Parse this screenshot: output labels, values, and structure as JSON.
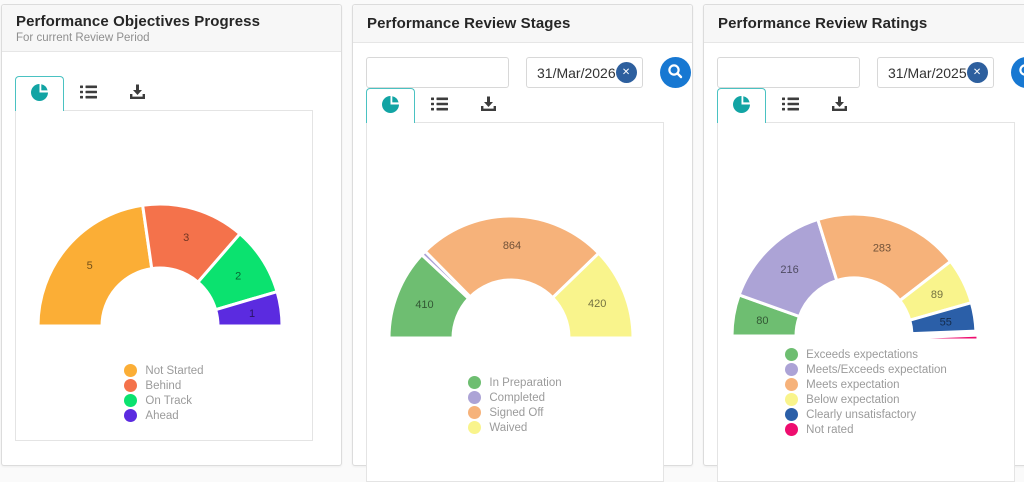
{
  "accent": {
    "tab_border": "#4ac2c2",
    "pie_icon": "#12a4a4",
    "search_button": "#1778d2",
    "clear_button": "#2d5f9e"
  },
  "cards": [
    {
      "title": "Performance Objectives Progress",
      "subtitle": "For current Review Period",
      "chart_data": {
        "type": "pie",
        "shape": "half-donut",
        "title": "Performance Objectives Progress",
        "legend_position": "bottom",
        "segments": [
          {
            "label": "Not Started",
            "value": 5,
            "color": "#FBAE36"
          },
          {
            "label": "Behind",
            "value": 3,
            "color": "#F4724B"
          },
          {
            "label": "On Track",
            "value": 2,
            "color": "#0BE26F"
          },
          {
            "label": "Ahead",
            "value": 1,
            "color": "#5B2BE0"
          }
        ]
      }
    },
    {
      "title": "Performance Review Stages",
      "filters": {
        "text_value": "",
        "date_value": "31/Mar/2026",
        "clear_glyph": "✕"
      },
      "chart_data": {
        "type": "pie",
        "shape": "half-donut",
        "title": "Performance Review Stages",
        "legend_position": "bottom",
        "segments": [
          {
            "label": "In Preparation",
            "value": 410,
            "color": "#6EBE71"
          },
          {
            "label": "Completed",
            "value": null,
            "color": "#ACA3D6"
          },
          {
            "label": "Signed Off",
            "value": 864,
            "color": "#F6B27A"
          },
          {
            "label": "Waived",
            "value": 420,
            "color": "#F9F48C"
          }
        ]
      }
    },
    {
      "title": "Performance Review Ratings",
      "filters": {
        "text_value": "",
        "date_value": "31/Mar/2025",
        "clear_glyph": "✕"
      },
      "chart_data": {
        "type": "pie",
        "shape": "half-donut",
        "title": "Performance Review Ratings",
        "legend_position": "bottom",
        "segments": [
          {
            "label": "Exceeds expectations",
            "value": 80,
            "color": "#6EBE71"
          },
          {
            "label": "Meets/Exceeds expectation",
            "value": 216,
            "color": "#ACA3D6"
          },
          {
            "label": "Meets expectation",
            "value": 283,
            "color": "#F6B27A"
          },
          {
            "label": "Below expectation",
            "value": 89,
            "color": "#F9F48C"
          },
          {
            "label": "Clearly unsatisfactory",
            "value": 55,
            "color": "#2B5FA8"
          },
          {
            "label": "Not rated",
            "value": null,
            "color": "#EE0D6F",
            "offset": [
              2,
              4
            ]
          }
        ]
      }
    }
  ]
}
